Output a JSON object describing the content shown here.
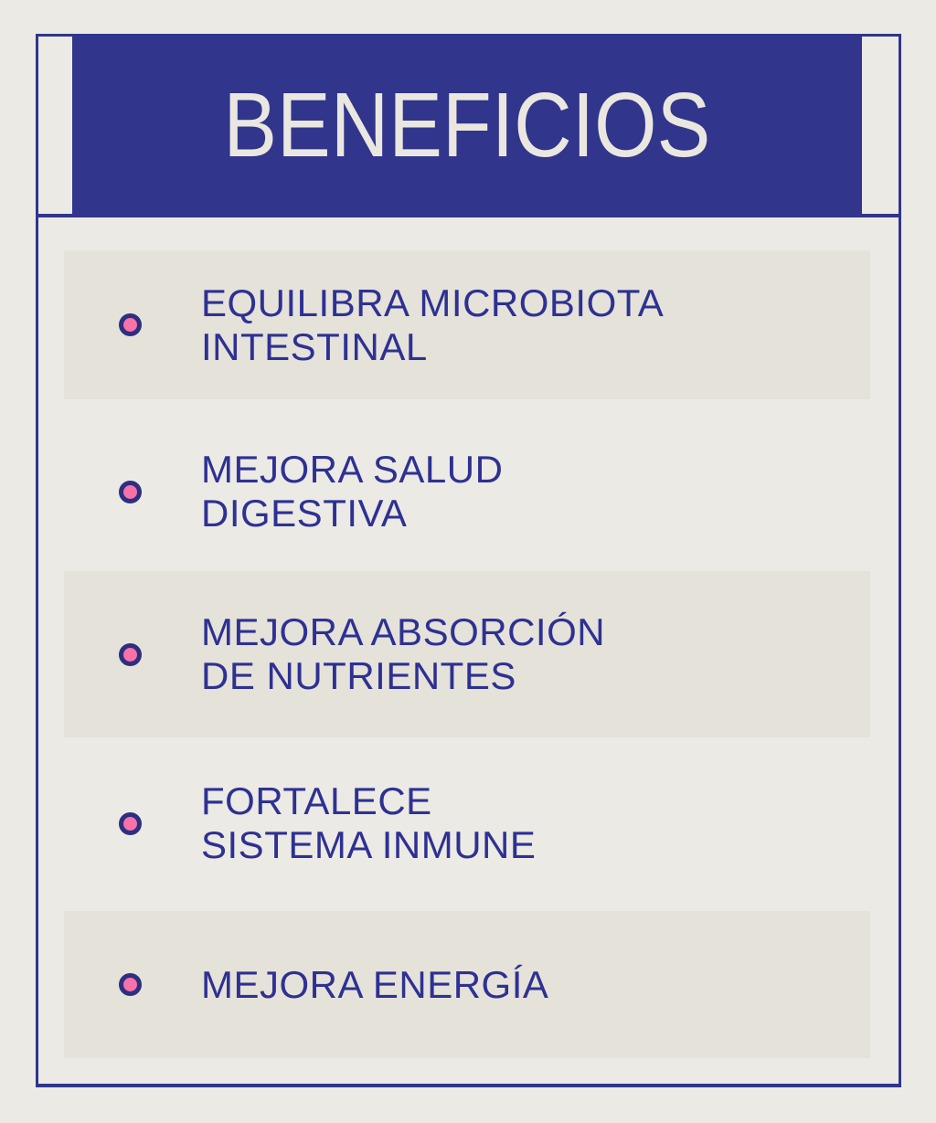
{
  "header": {
    "title": "BENEFICIOS"
  },
  "benefits": [
    {
      "line1": "EQUILIBRA MICROBIOTA",
      "line2": "INTESTINAL",
      "highlighted": true
    },
    {
      "line1": "MEJORA SALUD",
      "line2": "DIGESTIVA",
      "highlighted": false
    },
    {
      "line1": "MEJORA ABSORCIÓN",
      "line2": "DE NUTRIENTES",
      "highlighted": true
    },
    {
      "line1": "FORTALECE",
      "line2": "SISTEMA INMUNE",
      "highlighted": false
    },
    {
      "line1": "MEJORA ENERGÍA",
      "line2": "",
      "highlighted": true
    }
  ],
  "colors": {
    "page_bg": "#eceae4",
    "panel_bg": "#e5e2da",
    "accent_blue": "#31358b",
    "text_blue": "#2e3192",
    "title_color": "#eae7e0",
    "accent_pink": "#f971a9",
    "bullet_ring": "#2d2f80"
  }
}
